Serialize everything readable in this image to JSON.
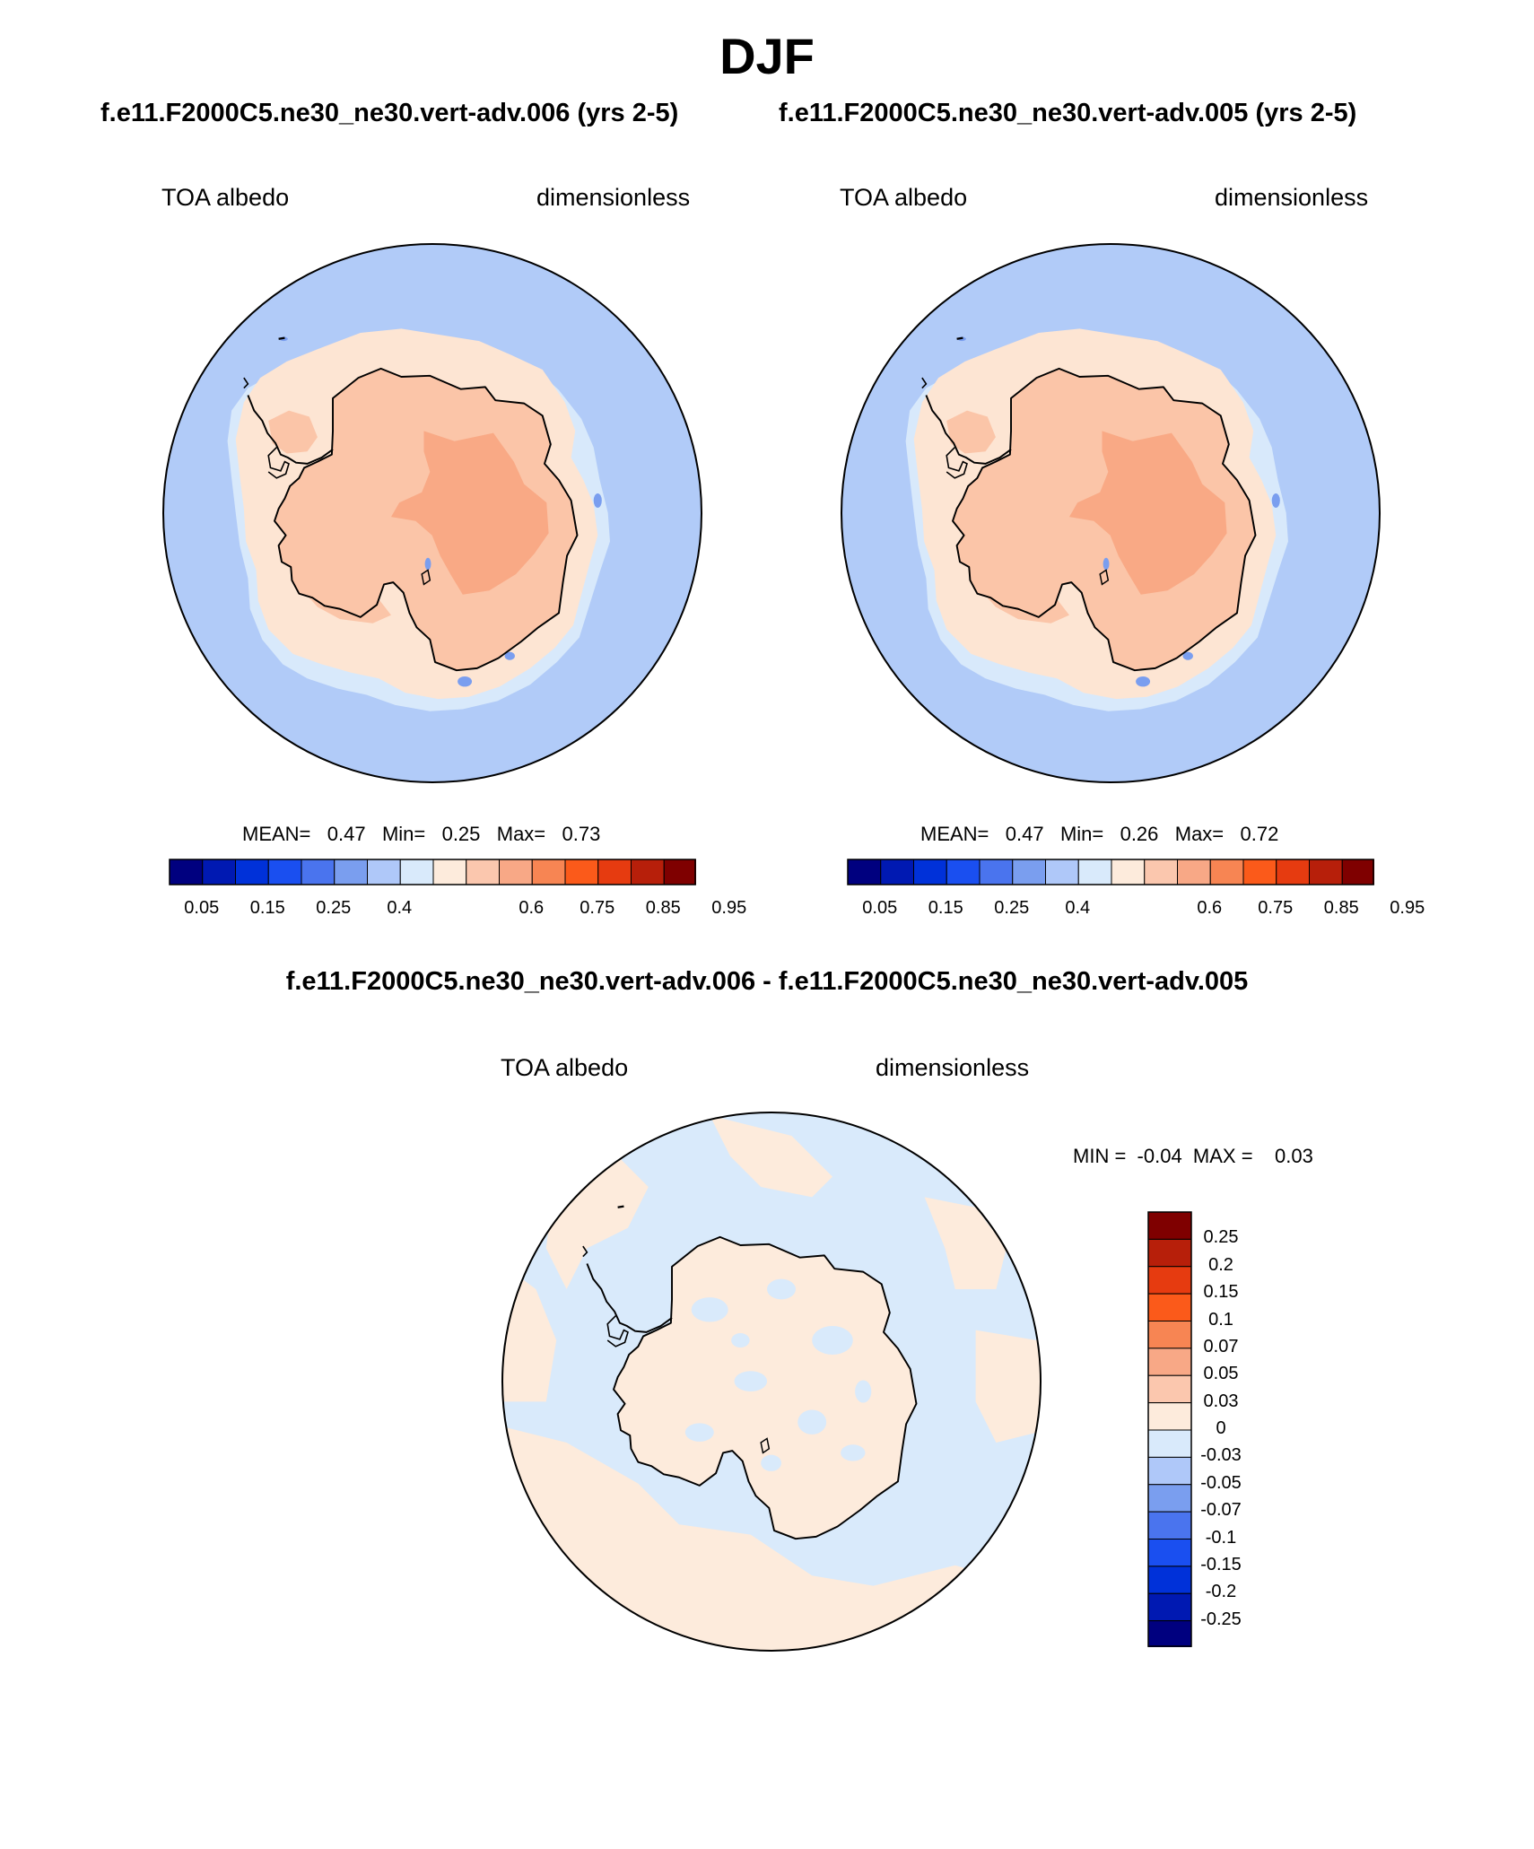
{
  "title": "DJF",
  "panels": [
    {
      "case_title": "f.e11.F2000C5.ne30_ne30.vert-adv.006 (yrs 2-5)",
      "left_label": "TOA albedo",
      "right_label": "dimensionless",
      "stats": {
        "mean_label": "MEAN=",
        "mean": "0.47",
        "min_label": "Min=",
        "min": "0.25",
        "max_label": "Max=",
        "max": "0.73"
      }
    },
    {
      "case_title": "f.e11.F2000C5.ne30_ne30.vert-adv.005 (yrs 2-5)",
      "left_label": "TOA albedo",
      "right_label": "dimensionless",
      "stats": {
        "mean_label": "MEAN=",
        "mean": "0.47",
        "min_label": "Min=",
        "min": "0.26",
        "max_label": "Max=",
        "max": "0.72"
      }
    }
  ],
  "diff": {
    "title": "f.e11.F2000C5.ne30_ne30.vert-adv.006 - f.e11.F2000C5.ne30_ne30.vert-adv.005",
    "left_label": "TOA albedo",
    "right_label": "dimensionless",
    "stats": {
      "min_label": "MIN =",
      "min": "-0.04",
      "max_label": "MAX =",
      "max": "0.03"
    }
  },
  "colorbar": {
    "colors": [
      "#00007f",
      "#0019b2",
      "#0031d9",
      "#1a4ff0",
      "#4a74ee",
      "#7a9eef",
      "#afc8f9",
      "#d9eafb",
      "#fdebdc",
      "#fbc7ae",
      "#f8a886",
      "#f78553",
      "#fb5a1a",
      "#e63b10",
      "#b71f0a",
      "#7f0000"
    ],
    "tick_labels": [
      "0.05",
      "0.15",
      "0.25",
      "0.4",
      "0.6",
      "0.75",
      "0.85",
      "0.95"
    ]
  },
  "diff_colorbar": {
    "colors": [
      "#7f0000",
      "#b71f0a",
      "#e63b10",
      "#fb5a1a",
      "#f78553",
      "#f8a886",
      "#fbc7ae",
      "#fdebdc",
      "#d9eafb",
      "#afc8f9",
      "#7a9eef",
      "#4a74ee",
      "#1a4ff0",
      "#0031d9",
      "#0019b2",
      "#00007f"
    ],
    "tick_labels": [
      "0.25",
      "0.2",
      "0.15",
      "0.1",
      "0.07",
      "0.05",
      "0.03",
      "0",
      "-0.03",
      "-0.05",
      "-0.07",
      "-0.1",
      "-0.15",
      "-0.2",
      "-0.25"
    ]
  },
  "map_colors": {
    "ocean": "#b1cbf8",
    "sea_ice": "#d8e9fb",
    "shelf": "#fde5d3",
    "continent": "#fbc5a8",
    "plateau": "#f9a985",
    "diff_neg": "#d9eafb",
    "diff_pos": "#fdebdc"
  }
}
